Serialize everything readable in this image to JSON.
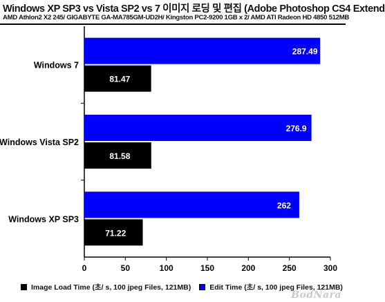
{
  "chart_data": {
    "type": "bar",
    "orientation": "horizontal",
    "title": "Windows XP SP3 vs Vista SP2 vs 7 이미지 로딩 및 편집 (Adobe Photoshop CS4 Extend",
    "subtitle": "AMD Athlon2 X2 245/ GIGABYTE GA-MA785GM-UD2H/ Kingston PC2-9200 1GB x 2/ AMD ATI Radeon HD 4850 512MB",
    "categories": [
      "Windows 7",
      "Windows Vista SP2",
      "Windows XP SP3"
    ],
    "series": [
      {
        "name": "Edit Time (초/ s, 100 jpeg Files, 121MB)",
        "color": "#0000ff",
        "values": [
          287.49,
          276.9,
          262
        ]
      },
      {
        "name": "Image Load Time (초/ s, 100 jpeg Files, 121MB)",
        "color": "#000000",
        "values": [
          81.47,
          81.58,
          71.22
        ]
      }
    ],
    "data_labels": {
      "edit": [
        "287.49",
        "276.9",
        "262"
      ],
      "load": [
        "81.47",
        "81.58",
        "71.22"
      ]
    },
    "xlim": [
      0,
      300
    ],
    "xticks": [
      0,
      50,
      100,
      150,
      200,
      250,
      300
    ],
    "grid": false,
    "legend_position": "bottom"
  },
  "legend": [
    {
      "label": "Image Load Time (초/ s, 100 jpeg Files, 121MB)",
      "color": "#000000"
    },
    {
      "label": "Edit Time (초/ s, 100 jpeg Files, 121MB)",
      "color": "#0000ff"
    }
  ],
  "watermark": "BodNara"
}
